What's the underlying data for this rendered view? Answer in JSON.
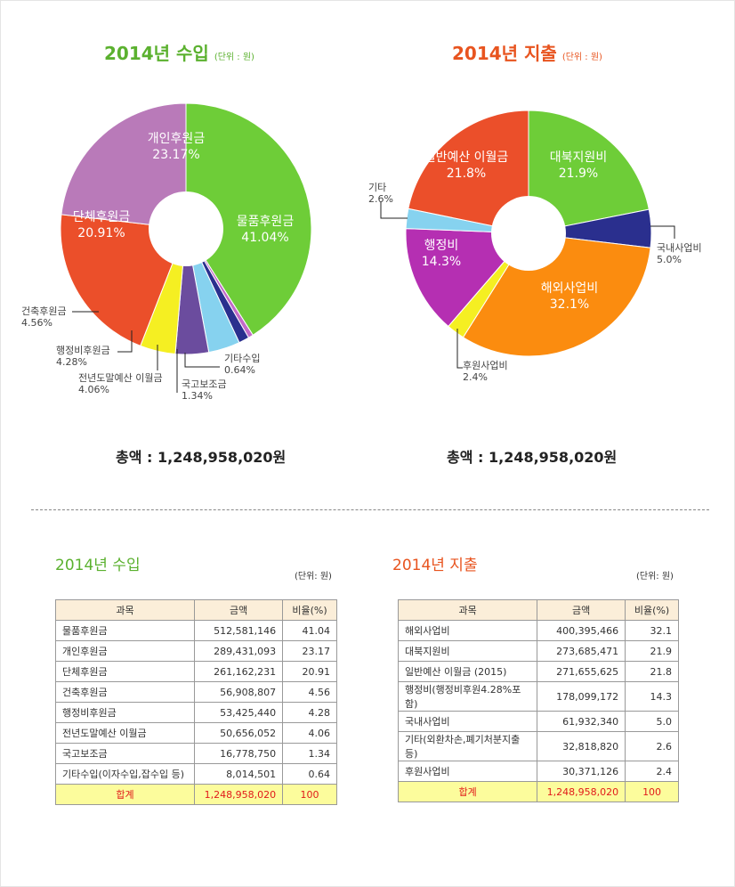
{
  "income": {
    "title": "2014년 수입",
    "unit": "(단위 : 원)",
    "total": "총액 : 1,248,958,020원"
  },
  "expense": {
    "title": "2014년 지출",
    "unit": "(단위 : 원)",
    "total": "총액 : 1,248,958,020원"
  },
  "chart_data": [
    {
      "type": "pie",
      "title": "2014년 수입",
      "slices": [
        {
          "label": "물품후원금",
          "pct": "41.04%",
          "value": 41.04,
          "color": "#6ecd38"
        },
        {
          "label": "기타수입",
          "pct": "0.64%",
          "value": 0.64,
          "color": "#c26bc7"
        },
        {
          "label": "국고보조금",
          "pct": "1.34%",
          "value": 1.34,
          "color": "#2a2f8e"
        },
        {
          "label": "전년도말예산 이월금",
          "pct": "4.06%",
          "value": 4.06,
          "color": "#86d2ef"
        },
        {
          "label": "행정비후원금",
          "pct": "4.28%",
          "value": 4.28,
          "color": "#6b4c9e"
        },
        {
          "label": "건축후원금",
          "pct": "4.56%",
          "value": 4.56,
          "color": "#f5ef22"
        },
        {
          "label": "단체후원금",
          "pct": "20.91%",
          "value": 20.91,
          "color": "#eb4f2a"
        },
        {
          "label": "개인후원금",
          "pct": "23.17%",
          "value": 23.17,
          "color": "#b97ab9"
        }
      ]
    },
    {
      "type": "pie",
      "title": "2014년 지출",
      "slices": [
        {
          "label": "대북지원비",
          "pct": "21.9%",
          "value": 21.9,
          "color": "#6ecd38"
        },
        {
          "label": "국내사업비",
          "pct": "5.0%",
          "value": 5.0,
          "color": "#2a2f8e"
        },
        {
          "label": "해외사업비",
          "pct": "32.1%",
          "value": 32.1,
          "color": "#fb8c0f"
        },
        {
          "label": "후원사업비",
          "pct": "2.4%",
          "value": 2.4,
          "color": "#f5ef22"
        },
        {
          "label": "행정비",
          "pct": "14.3%",
          "value": 14.3,
          "color": "#b52fb2"
        },
        {
          "label": "기타",
          "pct": "2.6%",
          "value": 2.6,
          "color": "#86d2ef"
        },
        {
          "label": "일반예산 이월금",
          "pct": "21.8%",
          "value": 21.8,
          "color": "#eb4f2a"
        }
      ]
    }
  ],
  "income_table": {
    "title": "2014년 수입",
    "unit": "(단위: 원)",
    "headers": [
      "과목",
      "금액",
      "비율(%)"
    ],
    "rows": [
      [
        "물품후원금",
        "512,581,146",
        "41.04"
      ],
      [
        "개인후원금",
        "289,431,093",
        "23.17"
      ],
      [
        "단체후원금",
        "261,162,231",
        "20.91"
      ],
      [
        "건축후원금",
        "56,908,807",
        "4.56"
      ],
      [
        "행정비후원금",
        "53,425,440",
        "4.28"
      ],
      [
        "전년도말예산 이월금",
        "50,656,052",
        "4.06"
      ],
      [
        "국고보조금",
        "16,778,750",
        "1.34"
      ],
      [
        "기타수입(이자수입,잡수입 등)",
        "8,014,501",
        "0.64"
      ]
    ],
    "total": [
      "합계",
      "1,248,958,020",
      "100"
    ]
  },
  "expense_table": {
    "title": "2014년 지출",
    "unit": "(단위: 원)",
    "headers": [
      "과목",
      "금액",
      "비율(%)"
    ],
    "rows": [
      [
        "해외사업비",
        "400,395,466",
        "32.1"
      ],
      [
        "대북지원비",
        "273,685,471",
        "21.9"
      ],
      [
        "일반예산 이월금 (2015)",
        "271,655,625",
        "21.8"
      ],
      [
        "행정비(행정비후원4.28%포함)",
        "178,099,172",
        "14.3"
      ],
      [
        "국내사업비",
        "61,932,340",
        "5.0"
      ],
      [
        "기타(외환차손,폐기처분지출 등)",
        "32,818,820",
        "2.6"
      ],
      [
        "후원사업비",
        "30,371,126",
        "2.4"
      ]
    ],
    "total": [
      "합계",
      "1,248,958,020",
      "100"
    ]
  }
}
